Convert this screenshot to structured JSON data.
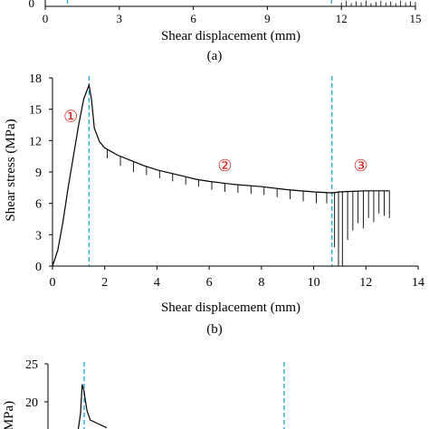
{
  "chart_data": [
    {
      "panel_label": "(a)",
      "type": "line",
      "xlabel": "Shear displacement (mm)",
      "ylabel": "",
      "xlim": [
        0,
        15
      ],
      "x_ticks": [
        "0",
        "3",
        "6",
        "9",
        "12",
        "15"
      ],
      "markers_x": [
        0.9,
        11.6
      ],
      "series": [
        {
          "x": [
            12.0,
            12.2,
            12.4,
            12.6,
            12.8,
            13.0,
            13.2,
            13.4,
            13.6,
            13.8,
            14.0,
            14.2,
            14.4,
            14.6,
            14.8,
            15.0
          ],
          "y": [
            0.6,
            0.9,
            0.5,
            0.8,
            0.6,
            0.9,
            0.5,
            0.7,
            0.9,
            0.6,
            0.8,
            0.5,
            0.9,
            0.6,
            0.8,
            0.7
          ]
        }
      ]
    },
    {
      "panel_label": "(b)",
      "type": "line",
      "xlabel": "Shear displacement (mm)",
      "ylabel": "Shear stress (MPa)",
      "xlim": [
        0,
        14
      ],
      "ylim": [
        0,
        18
      ],
      "x_ticks": [
        0,
        2,
        4,
        6,
        8,
        10,
        12,
        14
      ],
      "y_ticks": [
        0,
        3,
        6,
        9,
        12,
        15,
        18
      ],
      "markers_x": [
        1.4,
        10.7
      ],
      "stage_labels": [
        {
          "text": "①",
          "x": 0.7,
          "y": 13.8
        },
        {
          "text": "②",
          "x": 6.6,
          "y": 9.1
        },
        {
          "text": "③",
          "x": 11.8,
          "y": 9.1
        }
      ],
      "series": [
        {
          "x": [
            0,
            0.2,
            0.4,
            0.6,
            0.8,
            1.0,
            1.2,
            1.35,
            1.4,
            1.5,
            1.6,
            1.8,
            2.0,
            2.5,
            3.0,
            3.5,
            4.0,
            4.5,
            5.0,
            5.5,
            6.0,
            7.0,
            8.0,
            9.0,
            10.0,
            10.7,
            11.0,
            12.0,
            12.9
          ],
          "y": [
            0,
            1.5,
            4.2,
            7.5,
            10.5,
            13.5,
            16.0,
            17.0,
            17.3,
            15.8,
            13.2,
            11.9,
            11.3,
            10.6,
            10.1,
            9.6,
            9.2,
            8.9,
            8.6,
            8.3,
            8.1,
            7.8,
            7.6,
            7.3,
            7.1,
            7.0,
            7.1,
            7.2,
            7.2
          ],
          "drops": [
            {
              "x": 2.1,
              "y": 10.3
            },
            {
              "x": 2.6,
              "y": 9.6
            },
            {
              "x": 3.1,
              "y": 9.0
            },
            {
              "x": 3.6,
              "y": 8.7
            },
            {
              "x": 4.1,
              "y": 8.4
            },
            {
              "x": 4.6,
              "y": 8.1
            },
            {
              "x": 5.1,
              "y": 7.8
            },
            {
              "x": 5.6,
              "y": 7.6
            },
            {
              "x": 6.1,
              "y": 7.3
            },
            {
              "x": 6.6,
              "y": 7.1
            },
            {
              "x": 7.1,
              "y": 7.0
            },
            {
              "x": 7.6,
              "y": 6.9
            },
            {
              "x": 8.1,
              "y": 6.8
            },
            {
              "x": 8.6,
              "y": 6.6
            },
            {
              "x": 9.1,
              "y": 6.4
            },
            {
              "x": 9.6,
              "y": 6.2
            },
            {
              "x": 10.1,
              "y": 6.0
            },
            {
              "x": 10.5,
              "y": 6.0
            },
            {
              "x": 10.8,
              "y": 1.8
            },
            {
              "x": 10.95,
              "y": 0
            },
            {
              "x": 11.1,
              "y": 0
            },
            {
              "x": 11.3,
              "y": 2.5
            },
            {
              "x": 11.5,
              "y": 3.4
            },
            {
              "x": 11.7,
              "y": 4.1
            },
            {
              "x": 11.9,
              "y": 3.6
            },
            {
              "x": 12.1,
              "y": 4.6
            },
            {
              "x": 12.3,
              "y": 4.2
            },
            {
              "x": 12.5,
              "y": 5.0
            },
            {
              "x": 12.7,
              "y": 4.8
            },
            {
              "x": 12.9,
              "y": 4.6
            }
          ]
        }
      ]
    },
    {
      "panel_label": "",
      "type": "line",
      "ylabel": "(MPa)",
      "ylim": [
        0,
        25
      ],
      "y_ticks": [
        20,
        25
      ],
      "markers_x_px": [],
      "series": [
        {
          "x": [
            0.9,
            1.0,
            1.05,
            1.1,
            1.2,
            1.3,
            1.5,
            1.8
          ],
          "y": [
            15.5,
            18.5,
            22.3,
            21.5,
            18.8,
            17.6,
            17.2,
            16.6
          ]
        }
      ]
    }
  ],
  "labels": {
    "panel_a": "(a)",
    "panel_b": "(b)"
  }
}
